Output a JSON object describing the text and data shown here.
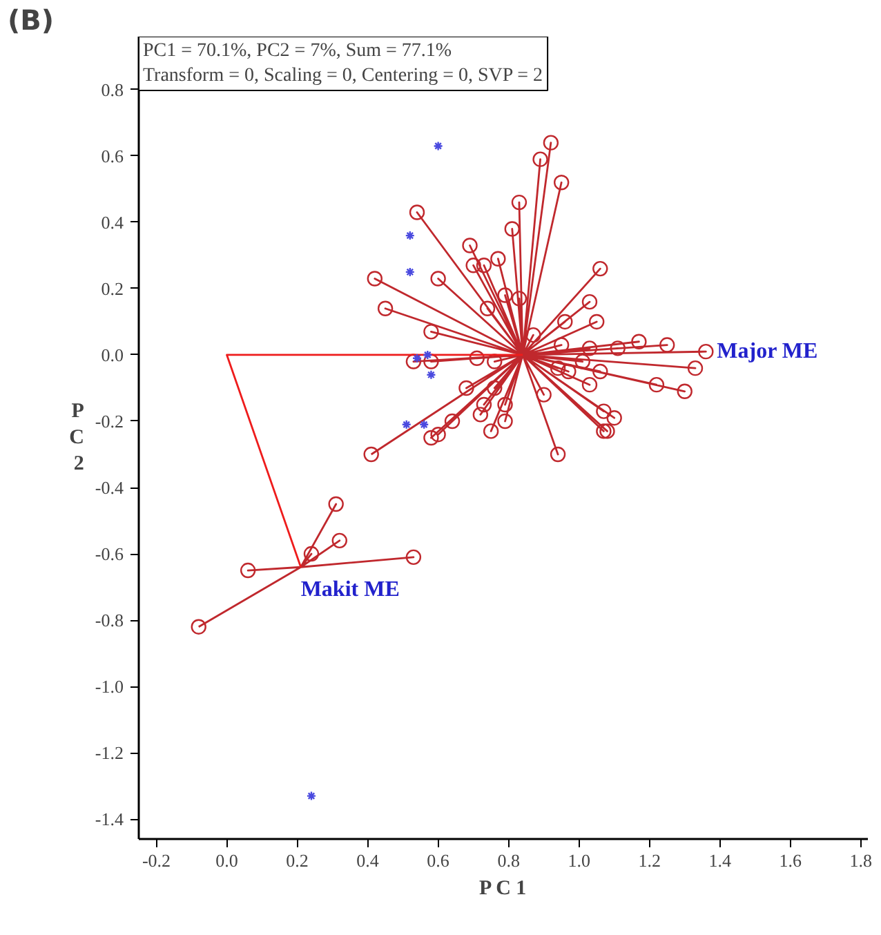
{
  "chart_data": {
    "type": "scatter",
    "title": "PC1 = 70.1%, PC2 = 7%, Sum = 77.1%",
    "subtitle": "Transform = 0, Scaling = 0, Centering = 0, SVP = 2",
    "xlabel": "P C 1",
    "ylabel": "P C 2",
    "xlim": [
      -0.25,
      1.82
    ],
    "ylim": [
      -1.46,
      0.96
    ],
    "xticks": [
      -0.2,
      {
        "value": 0,
        "label": "0.0"
      },
      0.2,
      0.4,
      0.6,
      0.8,
      {
        "value": 1,
        "label": "1.0"
      },
      1.2,
      1.4,
      1.6,
      1.8
    ],
    "yticks": [
      -1.4,
      -1.2,
      {
        "value": -1,
        "label": "-1.0"
      },
      -0.8,
      -0.6,
      -0.4,
      -0.2,
      {
        "value": 0,
        "label": "0.0"
      },
      0.2,
      0.4,
      0.6,
      0.8
    ],
    "grid": false,
    "annotations": [
      "(B)",
      {
        "text": "Major ME",
        "x": 1.36,
        "y": 0.01
      },
      {
        "text": "Makit ME",
        "x": 0.21,
        "y": -0.64
      }
    ],
    "series": [
      {
        "type": "line",
        "color": "#c0282d",
        "x": [
          0.84,
          0.92,
          0.84,
          0.89,
          0.84,
          0.95,
          0.84,
          0.83,
          0.84,
          0.81,
          0.84,
          0.54,
          0.84,
          0.69,
          0.84,
          0.77,
          0.84,
          0.7,
          0.84,
          0.73,
          0.84,
          0.42,
          0.84,
          0.6,
          0.84,
          1.06,
          0.84,
          0.45,
          0.84,
          0.58,
          0.84,
          1.03,
          0.84,
          0.96,
          0.84,
          1.05,
          0.84,
          0.87,
          0.84,
          0.95,
          0.84,
          1.03,
          0.84,
          1.11,
          0.84,
          1.17,
          0.84,
          1.25,
          0.84,
          1.36,
          0.84,
          1.33,
          0.84,
          1.01,
          0.84,
          0.94,
          0.84,
          0.97,
          0.84,
          1.06,
          0.84,
          1.03,
          0.84,
          1.22,
          0.84,
          1.3,
          0.84,
          0.9,
          0.84,
          1.07,
          0.84,
          1.1,
          0.84,
          1.07,
          0.84,
          1.08,
          0.84,
          0.94,
          0.84,
          0.53,
          0.84,
          0.58,
          0.84,
          0.71,
          0.84,
          0.76,
          0.84,
          0.74,
          0.84,
          0.79,
          0.84,
          0.83,
          0.84,
          0.68,
          0.84,
          0.76,
          0.84,
          0.73,
          0.84,
          0.79,
          0.84,
          0.72,
          0.84,
          0.79,
          0.84,
          0.64,
          0.84,
          0.75,
          0.84,
          0.58,
          0.84,
          0.6,
          0.84,
          0.41
        ],
        "values": [
          0.0,
          0.64,
          0.0,
          0.59,
          0.0,
          0.52,
          0.0,
          0.46,
          0.0,
          0.38,
          0.0,
          0.43,
          0.0,
          0.33,
          0.0,
          0.29,
          0.0,
          0.27,
          0.0,
          0.27,
          0.0,
          0.23,
          0.0,
          0.23,
          0.0,
          0.26,
          0.0,
          0.14,
          0.0,
          0.07,
          0.0,
          0.16,
          0.0,
          0.1,
          0.0,
          0.1,
          0.0,
          0.06,
          0.0,
          0.03,
          0.0,
          0.02,
          0.0,
          0.02,
          0.0,
          0.04,
          0.0,
          0.03,
          0.0,
          0.01,
          0.0,
          -0.04,
          0.0,
          -0.02,
          0.0,
          -0.04,
          0.0,
          -0.05,
          0.0,
          -0.05,
          0.0,
          -0.09,
          0.0,
          -0.09,
          0.0,
          -0.11,
          0.0,
          -0.12,
          0.0,
          -0.17,
          0.0,
          -0.19,
          0.0,
          -0.23,
          0.0,
          -0.23,
          0.0,
          -0.3,
          0.0,
          -0.02,
          0.0,
          -0.02,
          0.0,
          -0.01,
          0.0,
          -0.02,
          0.0,
          0.14,
          0.0,
          0.18,
          0.0,
          0.17,
          0.0,
          -0.1,
          0.0,
          -0.1,
          0.0,
          -0.15,
          0.0,
          -0.15,
          0.0,
          -0.18,
          0.0,
          -0.2,
          0.0,
          -0.2,
          0.0,
          -0.23,
          0.0,
          -0.25,
          0.0,
          -0.24,
          0.0,
          -0.3
        ]
      },
      {
        "marker": "circle",
        "color": "#c0282d",
        "x": [
          0.92,
          0.89,
          0.95,
          0.83,
          0.81,
          0.54,
          0.69,
          0.77,
          0.7,
          0.73,
          0.42,
          0.6,
          1.06,
          0.45,
          0.58,
          1.03,
          0.96,
          1.05,
          0.87,
          0.95,
          1.03,
          1.11,
          1.17,
          1.25,
          1.36,
          1.33,
          1.01,
          0.94,
          0.97,
          1.06,
          1.03,
          1.22,
          1.3,
          0.9,
          1.07,
          1.1,
          1.07,
          1.08,
          0.94,
          0.53,
          0.58,
          0.71,
          0.76,
          0.74,
          0.79,
          0.83,
          0.68,
          0.76,
          0.73,
          0.79,
          0.72,
          0.79,
          0.64,
          0.75,
          0.58,
          0.6,
          0.41
        ],
        "values": [
          0.64,
          0.59,
          0.52,
          0.46,
          0.38,
          0.43,
          0.33,
          0.29,
          0.27,
          0.27,
          0.23,
          0.23,
          0.26,
          0.14,
          0.07,
          0.16,
          0.1,
          0.1,
          0.06,
          0.03,
          0.02,
          0.02,
          0.04,
          0.03,
          0.01,
          -0.04,
          -0.02,
          -0.04,
          -0.05,
          -0.05,
          -0.09,
          -0.09,
          -0.11,
          -0.12,
          -0.17,
          -0.19,
          -0.23,
          -0.23,
          -0.3,
          -0.02,
          -0.02,
          -0.01,
          -0.02,
          0.14,
          0.18,
          0.17,
          -0.1,
          -0.1,
          -0.15,
          -0.15,
          -0.18,
          -0.2,
          -0.2,
          -0.23,
          -0.25,
          -0.24,
          -0.3
        ]
      },
      {
        "type": "line",
        "color": "#c0282d",
        "x": [
          0.21,
          0.31,
          0.21,
          0.32,
          0.21,
          0.24,
          0.21,
          0.53,
          0.21,
          0.06,
          0.21,
          -0.08
        ],
        "values": [
          -0.64,
          -0.45,
          -0.64,
          -0.56,
          -0.64,
          -0.6,
          -0.64,
          -0.61,
          -0.64,
          -0.65,
          -0.64,
          -0.82
        ]
      },
      {
        "marker": "circle",
        "color": "#c0282d",
        "x": [
          0.31,
          0.32,
          0.24,
          0.53,
          0.06,
          -0.08
        ],
        "values": [
          -0.45,
          -0.56,
          -0.6,
          -0.61,
          -0.65,
          -0.82
        ]
      },
      {
        "type": "line",
        "color": "#ee1c1c",
        "x": [
          0.84,
          0.0,
          0.21
        ],
        "values": [
          0.0,
          0.0,
          -0.64
        ]
      },
      {
        "marker": "cross",
        "color": "#4a4adf",
        "x": [
          0.6,
          0.52,
          0.52,
          0.54,
          0.57,
          0.58,
          0.51,
          0.56,
          0.24
        ],
        "values": [
          0.63,
          0.36,
          0.25,
          -0.01,
          0.0,
          -0.06,
          -0.21,
          -0.21,
          -1.33
        ]
      }
    ]
  }
}
